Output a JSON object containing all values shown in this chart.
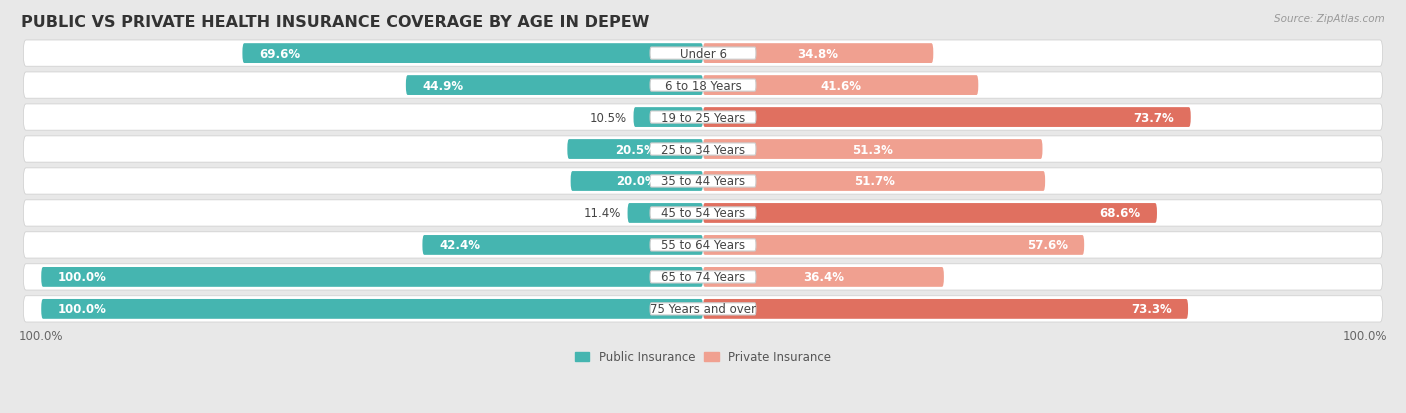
{
  "title": "PUBLIC VS PRIVATE HEALTH INSURANCE COVERAGE BY AGE IN DEPEW",
  "source": "Source: ZipAtlas.com",
  "categories": [
    "Under 6",
    "6 to 18 Years",
    "19 to 25 Years",
    "25 to 34 Years",
    "35 to 44 Years",
    "45 to 54 Years",
    "55 to 64 Years",
    "65 to 74 Years",
    "75 Years and over"
  ],
  "public_values": [
    69.6,
    44.9,
    10.5,
    20.5,
    20.0,
    11.4,
    42.4,
    100.0,
    100.0
  ],
  "private_values": [
    34.8,
    41.6,
    73.7,
    51.3,
    51.7,
    68.6,
    57.6,
    36.4,
    73.3
  ],
  "public_color": "#45b5b0",
  "private_color_strong": "#e07060",
  "private_color_weak": "#f0a090",
  "public_label": "Public Insurance",
  "private_label": "Private Insurance",
  "row_bg_color": "#ffffff",
  "page_bg_color": "#e8e8e8",
  "max_value": 100.0,
  "title_fontsize": 11.5,
  "bar_label_fontsize": 8.5,
  "cat_label_fontsize": 8.5,
  "tick_fontsize": 8.5,
  "private_threshold": 60.0
}
